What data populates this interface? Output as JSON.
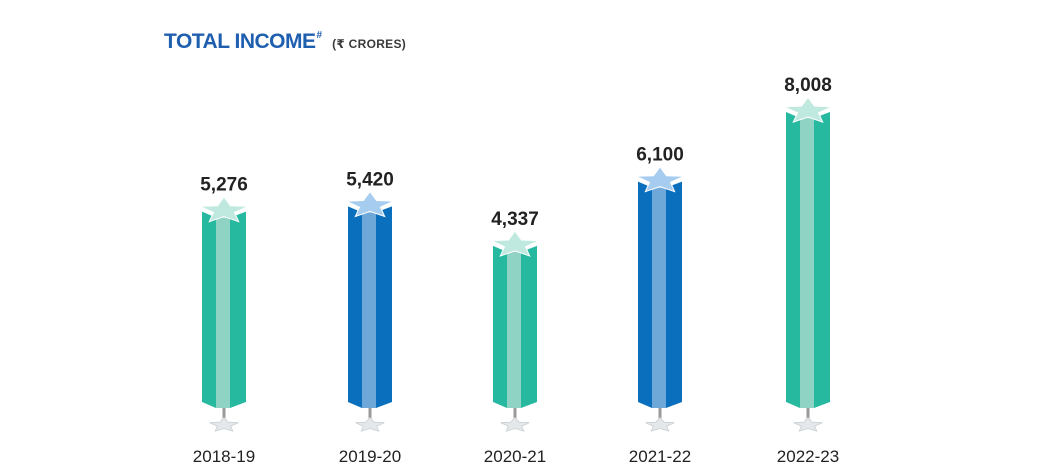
{
  "title": {
    "main": "TOTAL INCOME",
    "mark": "#",
    "unit": "(₹ CRORES)"
  },
  "colors": {
    "teal_front": "#27b9a0",
    "teal_side": "#8fd3c4",
    "teal_top": "#bfe8de",
    "blue_front": "#0a6fbd",
    "blue_side": "#6ea8d8",
    "blue_top": "#a6cdef",
    "stand": "#9a9a9a",
    "base_star": "#e4e8ea"
  },
  "chart_data": {
    "type": "bar",
    "title": "TOTAL INCOME",
    "ylabel": "(₹ CRORES)",
    "categories": [
      "2018-19",
      "2019-20",
      "2020-21",
      "2021-22",
      "2022-23"
    ],
    "values": [
      5276,
      5420,
      4337,
      6100,
      8008
    ],
    "value_labels": [
      "5,276",
      "5,420",
      "4,337",
      "6,100",
      "8,008"
    ],
    "bar_colors": [
      "teal",
      "blue",
      "teal",
      "blue",
      "teal"
    ],
    "ylim": [
      0,
      8008
    ],
    "grid": false,
    "legend": "none"
  }
}
